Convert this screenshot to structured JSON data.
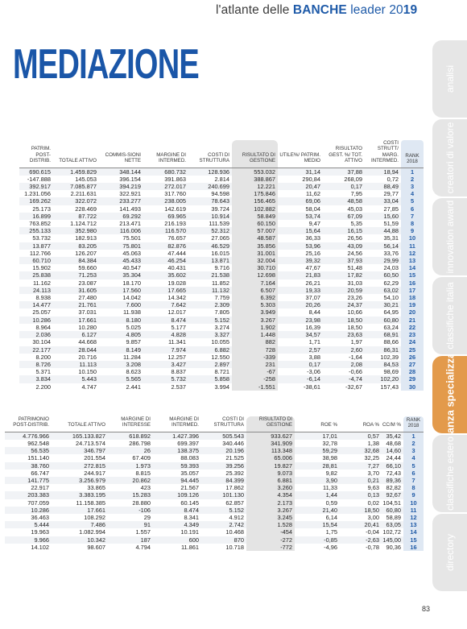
{
  "header": {
    "prefix": "l'atlante delle ",
    "bold": "BANCHE",
    "middle": " leader 20",
    "year_bold": "19"
  },
  "title": "MEDIAZIONE",
  "tabs": [
    {
      "label": "analisi",
      "active": false
    },
    {
      "label": "creatori di valore",
      "active": false
    },
    {
      "label": "innovation award",
      "active": false
    },
    {
      "label": "classifiche italia",
      "active": false
    },
    {
      "label": "finanza specializzata",
      "active": true
    },
    {
      "label": "classifiche estero",
      "active": false
    },
    {
      "label": "directory",
      "active": false
    }
  ],
  "table1": {
    "headers": [
      "PATRIM. POST-DISTRIB.",
      "TOTALE ATTIVO",
      "COMMIS-SIONI NETTE",
      "MARGINE DI INTERMED.",
      "COSTI DI STRUTTURA",
      "RISULTATO DI GESTIONE",
      "UTILE%/ PATRIM. MEDIO",
      "RISULTATO GEST. %/ TOT. ATTIVO",
      "COSTI STRUTT/ MARG. INTERMED.",
      "Rank 2018"
    ],
    "rows": [
      [
        "690.615",
        "1.459.829",
        "348.144",
        "680.732",
        "128.936",
        "553.032",
        "31,14",
        "37,88",
        "18,94",
        "1"
      ],
      [
        "-147.888",
        "145.053",
        "396.154",
        "391.863",
        "2.814",
        "388.867",
        "290,84",
        "268,09",
        "0,72",
        "2"
      ],
      [
        "392.917",
        "7.085.877",
        "394.219",
        "272.017",
        "240.699",
        "12.221",
        "20,47",
        "0,17",
        "88,49",
        "3"
      ],
      [
        "1.231.056",
        "2.211.631",
        "322.921",
        "317.760",
        "94.598",
        "175.846",
        "11,62",
        "7,95",
        "29,77",
        "4"
      ],
      [
        "169.262",
        "322.072",
        "233.277",
        "238.005",
        "78.643",
        "156.465",
        "69,06",
        "48,58",
        "33,04",
        "5"
      ],
      [
        "25.173",
        "228.469",
        "141.493",
        "142.619",
        "39.724",
        "102.882",
        "58,04",
        "45,03",
        "27,85",
        "6"
      ],
      [
        "16.899",
        "87.722",
        "69.292",
        "69.965",
        "10.914",
        "58.849",
        "53,74",
        "67,09",
        "15,60",
        "7"
      ],
      [
        "763.852",
        "1.124.712",
        "213.471",
        "216.193",
        "111.539",
        "60.150",
        "9,47",
        "5,35",
        "51,59",
        "8"
      ],
      [
        "255.133",
        "352.980",
        "116.006",
        "116.570",
        "52.312",
        "57.007",
        "15,64",
        "16,15",
        "44,88",
        "9"
      ],
      [
        "53.732",
        "182.913",
        "75.501",
        "76.657",
        "27.065",
        "48.587",
        "36,33",
        "26,56",
        "35,31",
        "10"
      ],
      [
        "13.877",
        "83.205",
        "75.801",
        "82.876",
        "46.529",
        "35.856",
        "53,96",
        "43,09",
        "56,14",
        "11"
      ],
      [
        "112.766",
        "126.207",
        "45.063",
        "47.444",
        "16.015",
        "31.001",
        "25,16",
        "24,56",
        "33,76",
        "12"
      ],
      [
        "60.710",
        "84.384",
        "45.433",
        "46.254",
        "13.871",
        "32.004",
        "39,32",
        "37,93",
        "29,99",
        "13"
      ],
      [
        "15.902",
        "59.660",
        "40.547",
        "40.431",
        "9.716",
        "30.710",
        "47,67",
        "51,48",
        "24,03",
        "14"
      ],
      [
        "25.838",
        "71.253",
        "35.304",
        "35.602",
        "21.538",
        "12.698",
        "21,83",
        "17,82",
        "60,50",
        "15"
      ],
      [
        "11.162",
        "23.087",
        "18.170",
        "19.028",
        "11.852",
        "7.164",
        "26,21",
        "31,03",
        "62,29",
        "16"
      ],
      [
        "24.113",
        "31.605",
        "17.560",
        "17.665",
        "11.132",
        "6.507",
        "19,33",
        "20,59",
        "63,02",
        "17"
      ],
      [
        "8.938",
        "27.480",
        "14.042",
        "14.342",
        "7.759",
        "6.392",
        "37,07",
        "23,26",
        "54,10",
        "18"
      ],
      [
        "14.477",
        "21.761",
        "7.600",
        "7.642",
        "2.309",
        "5.303",
        "20,26",
        "24,37",
        "30,21",
        "19"
      ],
      [
        "25.057",
        "37.031",
        "11.938",
        "12.017",
        "7.805",
        "3.949",
        "8,44",
        "10,66",
        "64,95",
        "20"
      ],
      [
        "10.286",
        "17.661",
        "8.180",
        "8.474",
        "5.152",
        "3.267",
        "23,98",
        "18,50",
        "60,80",
        "21"
      ],
      [
        "8.964",
        "10.280",
        "5.025",
        "5.177",
        "3.274",
        "1.902",
        "16,39",
        "18,50",
        "63,24",
        "22"
      ],
      [
        "2.036",
        "6.127",
        "4.805",
        "4.828",
        "3.327",
        "1.448",
        "34,57",
        "23,63",
        "68,91",
        "23"
      ],
      [
        "30.104",
        "44.668",
        "9.857",
        "11.341",
        "10.055",
        "882",
        "1,71",
        "1,97",
        "88,66",
        "24"
      ],
      [
        "22.177",
        "28.044",
        "8.149",
        "7.974",
        "6.882",
        "728",
        "2,57",
        "2,60",
        "86,31",
        "25"
      ],
      [
        "8.200",
        "20.716",
        "11.284",
        "12.257",
        "12.550",
        "-339",
        "3,88",
        "-1,64",
        "102,39",
        "26"
      ],
      [
        "8.726",
        "11.113",
        "3.208",
        "3.427",
        "2.897",
        "231",
        "0,17",
        "2,08",
        "84,53",
        "27"
      ],
      [
        "5.371",
        "10.150",
        "8.623",
        "8.837",
        "8.721",
        "-67",
        "-3,06",
        "-0,66",
        "98,69",
        "28"
      ],
      [
        "3.834",
        "5.443",
        "5.565",
        "5.732",
        "5.858",
        "-258",
        "-6,14",
        "-4,74",
        "102,20",
        "29"
      ],
      [
        "2.200",
        "4.747",
        "2.441",
        "2.537",
        "3.994",
        "-1.551",
        "-38,61",
        "-32,67",
        "157,43",
        "30"
      ]
    ]
  },
  "table2": {
    "headers": [
      "PATRIMONIO POST-DISTRIB.",
      "TOTALE ATTIVO",
      "MARGINE DI INTERESSE",
      "MARGINE DI INTERMED.",
      "COSTI DI STRUTTURA",
      "RISULTATO DI GESTIONE",
      "ROE %",
      "ROA %",
      "CC/M %",
      "Rank 2018"
    ],
    "rows": [
      [
        "4.776.966",
        "165.133.827",
        "618.892",
        "1.427.396",
        "505.543",
        "933.627",
        "17,01",
        "0,57",
        "35,42",
        "1"
      ],
      [
        "962.548",
        "24.713.574",
        "286.798",
        "699.397",
        "340.446",
        "341.909",
        "32,78",
        "1,38",
        "48,68",
        "2"
      ],
      [
        "56.535",
        "346.797",
        "26",
        "138.375",
        "20.196",
        "113.348",
        "59,29",
        "32,68",
        "14,60",
        "3"
      ],
      [
        "151.140",
        "201.554",
        "67.409",
        "88.083",
        "21.525",
        "65.006",
        "38,98",
        "32,25",
        "24,44",
        "4"
      ],
      [
        "38.760",
        "272.815",
        "1.973",
        "59.393",
        "39.256",
        "19.827",
        "28,81",
        "7,27",
        "66,10",
        "5"
      ],
      [
        "66.747",
        "244.917",
        "8.815",
        "35.057",
        "25.392",
        "9.073",
        "9,82",
        "3,70",
        "72,43",
        "6"
      ],
      [
        "141.775",
        "3.256.979",
        "20.862",
        "94.445",
        "84.399",
        "6.881",
        "3,90",
        "0,21",
        "89,36",
        "7"
      ],
      [
        "22.917",
        "33.865",
        "423",
        "21.567",
        "17.862",
        "3.260",
        "11,33",
        "9,63",
        "82,82",
        "8"
      ],
      [
        "203.383",
        "3.383.195",
        "15.283",
        "109.126",
        "101.130",
        "4.354",
        "1,44",
        "0,13",
        "92,67",
        "9"
      ],
      [
        "707.059",
        "11.158.385",
        "28.880",
        "60.145",
        "62.857",
        "2.173",
        "0,59",
        "0,02",
        "104,51",
        "10"
      ],
      [
        "10.286",
        "17.661",
        "-106",
        "8.474",
        "5.152",
        "3.267",
        "21,40",
        "18,50",
        "60,80",
        "11"
      ],
      [
        "36.463",
        "108.292",
        "29",
        "8.341",
        "4.912",
        "3.245",
        "6,14",
        "3,00",
        "58,89",
        "12"
      ],
      [
        "5.444",
        "7.486",
        "91",
        "4.349",
        "2.742",
        "1.528",
        "15,54",
        "20,41",
        "63,05",
        "13"
      ],
      [
        "19.963",
        "1.082.994",
        "1.557",
        "10.191",
        "10.468",
        "-454",
        "1,75",
        "-0,04",
        "102,72",
        "14"
      ],
      [
        "9.966",
        "10.342",
        "187",
        "600",
        "870",
        "-272",
        "-0,85",
        "-2,63",
        "145,00",
        "15"
      ],
      [
        "14.102",
        "98.607",
        "4.794",
        "11.861",
        "10.718",
        "-772",
        "-4,96",
        "-0,78",
        "90,36",
        "16"
      ]
    ]
  },
  "page_number": "83"
}
